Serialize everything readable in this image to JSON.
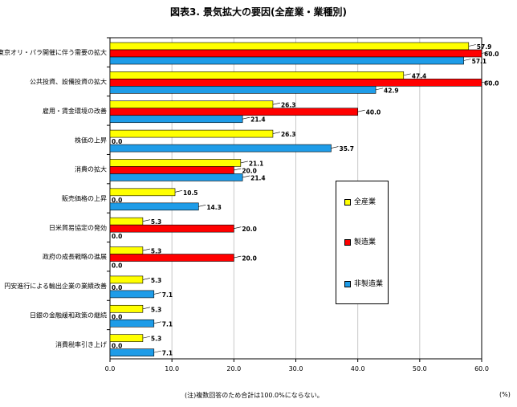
{
  "chart_data": {
    "type": "bar",
    "orientation": "horizontal",
    "title": "図表3. 景気拡大の要因(全産業・業種別)",
    "categories": [
      "東京オリ・パラ開催に伴う需要の拡大",
      "公共投資、設備投資の拡大",
      "雇用・賃金環境の改善",
      "株価の上昇",
      "消費の拡大",
      "販売価格の上昇",
      "日米貿易協定の発効",
      "政府の成長戦略の進展",
      "円安進行による輸出企業の業績改善",
      "日銀の金融緩和政策の継続",
      "消費税率引き上げ"
    ],
    "series": [
      {
        "name": "全産業",
        "color": "#ffff00",
        "values": [
          57.9,
          47.4,
          26.3,
          26.3,
          21.1,
          10.5,
          5.3,
          5.3,
          5.3,
          5.3,
          5.3
        ]
      },
      {
        "name": "製造業",
        "color": "#ff0000",
        "values": [
          60.0,
          60.0,
          40.0,
          0.0,
          20.0,
          0.0,
          20.0,
          20.0,
          0.0,
          0.0,
          0.0
        ]
      },
      {
        "name": "非製造業",
        "color": "#1e9ce8",
        "values": [
          57.1,
          42.9,
          21.4,
          35.7,
          21.4,
          14.3,
          0.0,
          0.0,
          7.1,
          7.1,
          7.1
        ]
      }
    ],
    "value_labels": [
      [
        "57.9",
        "60.0",
        "57.1"
      ],
      [
        "47.4",
        "60.0",
        "42.9"
      ],
      [
        "26.3",
        "40.0",
        "21.4"
      ],
      [
        "26.3",
        "0.0",
        "35.7"
      ],
      [
        "21.1",
        "20.0",
        "21.4"
      ],
      [
        "10.5",
        "0.0",
        "14.3"
      ],
      [
        "5.3",
        "20.0",
        "0.0"
      ],
      [
        "5.3",
        "20.0",
        "0.0"
      ],
      [
        "5.3",
        "0.0",
        "7.1"
      ],
      [
        "5.3",
        "0.0",
        "7.1"
      ],
      [
        "5.3",
        "0.0",
        "7.1"
      ]
    ],
    "xlim": [
      0,
      60
    ],
    "xticks": [
      "0.0",
      "10.0",
      "20.0",
      "30.0",
      "40.0",
      "50.0",
      "60.0"
    ],
    "xlabel": "",
    "ylabel": "",
    "grid": true,
    "legend_position": "right"
  },
  "note": "(注)複数回答のため合計は100.0%にならない。",
  "unit": "(%)"
}
